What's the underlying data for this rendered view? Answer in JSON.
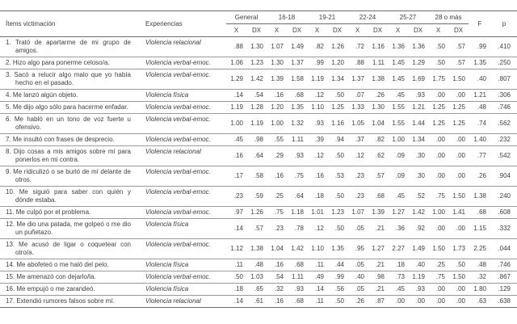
{
  "colors": {
    "background": "#ffffff",
    "text": "#404040",
    "rule_dark": "#6b6b6b",
    "rule_light": "#9b9b9b"
  },
  "table": {
    "headers": {
      "items": "Ítems victimación",
      "experiences": "Experiencias",
      "groups": [
        "General",
        "16-18",
        "19-21",
        "22-24",
        "25-27",
        "28 o más"
      ],
      "mean": "X",
      "sd": "DX",
      "f": "F",
      "p": "p"
    },
    "rows": [
      {
        "item": "1. Trató de apartarme de mi grupo de amigos.",
        "experience": "Violencia relacional",
        "values": [
          ".88",
          "1.30",
          "1.07",
          "1.49",
          ".82",
          "1.26",
          ".72",
          "1.16",
          "1.36",
          "1.36",
          ".50",
          ".57"
        ],
        "f": ".99",
        "p": ".410"
      },
      {
        "item": "2. Hizo algo para ponerme celoso/a.",
        "experience": "Violencia verbal-emoc.",
        "values": [
          "1.06",
          "1.23",
          "1.30",
          "1.37",
          ".99",
          "1.20",
          ".88",
          "1.11",
          "1.45",
          "1.29",
          ".50",
          ".57"
        ],
        "f": "1.35",
        "p": ".250"
      },
      {
        "item": "3. Sacó a relucir algo malo que yo había hecho en el pasado.",
        "experience": "Violencia verbal-emoc.",
        "values": [
          "1.29",
          "1.42",
          "1.39",
          "1.58",
          "1.19",
          "1.34",
          "1.37",
          "1.38",
          "1.45",
          "1.69",
          "1.75",
          "1.50"
        ],
        "f": ".40",
        "p": ".807"
      },
      {
        "item": "4. Me lanzó algún objeto.",
        "experience": "Violencia física",
        "values": [
          ".14",
          ".54",
          ".16",
          ".68",
          ".12",
          ".50",
          ".07",
          ".26",
          ".45",
          ".93",
          ".00",
          ".00"
        ],
        "f": "1.21",
        "p": ".306"
      },
      {
        "item": "5. Me dijo algo sólo para hacerme enfadar.",
        "experience": "Violencia verbal-emoc.",
        "values": [
          "1.19",
          "1.28",
          "1.20",
          "1.35",
          "1.10",
          "1.25",
          "1.33",
          "1.30",
          "1.55",
          "1.21",
          "1.25",
          "1.25"
        ],
        "f": ".48",
        "p": ".746"
      },
      {
        "item": "6. Me habló en un tono de voz fuerte u ofensivo.",
        "experience": "Violencia verbal-emoc.",
        "values": [
          "1.00",
          "1.19",
          "1.00",
          "1.32",
          ".93",
          "1.16",
          "1.05",
          "1.04",
          "1.55",
          "1.44",
          "1.25",
          "1.25"
        ],
        "f": ".74",
        "p": ".562"
      },
      {
        "item": "7. Me insultó con frases de desprecio.",
        "experience": "Violencia verbal-emoc.",
        "values": [
          ".45",
          ".98",
          ".55",
          "1.11",
          ".39",
          ".94",
          ".37",
          ".82",
          "1.00",
          "1.34",
          ".00",
          ".00"
        ],
        "f": "1.40",
        "p": ".232"
      },
      {
        "item": "8. Dijo cosas a mis amigos sobre mí para ponerlos en mi contra.",
        "experience": "Violencia relacional",
        "values": [
          ".16",
          ".64",
          ".29",
          ".93",
          ".12",
          ".50",
          ".12",
          ".62",
          ".09",
          ".30",
          ".00",
          ".00"
        ],
        "f": ".77",
        "p": ".542"
      },
      {
        "item": "9. Me ridiculizó o se burló de mí delante de otros.",
        "experience": "Violencia verbal-emoc.",
        "values": [
          ".17",
          ".58",
          ".16",
          ".75",
          ".16",
          ".53",
          ".23",
          ".57",
          ".09",
          ".30",
          ".00",
          ".00"
        ],
        "f": ".26",
        "p": ".904"
      },
      {
        "item": "10. Me siguió para saber con quién y dónde estaba.",
        "experience": "Violencia verbal-emoc.",
        "values": [
          ".23",
          ".59",
          ".25",
          ".64",
          ".18",
          ".50",
          ".23",
          ".68",
          ".45",
          ".52",
          ".75",
          "1.50"
        ],
        "f": "1.38",
        "p": ".240"
      },
      {
        "item": "11. Me culpó por el problema.",
        "experience": "Violencia verbal-emoc.",
        "values": [
          ".97",
          "1.26",
          ".75",
          "1.18",
          "1.01",
          "1.23",
          "1.07",
          "1.39",
          "1.27",
          "1.42",
          "1.00",
          "1.41"
        ],
        "f": ".68",
        "p": ".608"
      },
      {
        "item": "12. Me dio una patada, me golpeó o me dio un puñetazo.",
        "experience": "Violencia física",
        "values": [
          ".14",
          ".57",
          ".23",
          ".78",
          ".12",
          ".50",
          ".05",
          ".21",
          ".36",
          ".92",
          ".00",
          ".00"
        ],
        "f": "1.15",
        "p": ".332"
      },
      {
        "item": "13. Me acusó de ligar o coquetear con otro/a.",
        "experience": "Violencia verbal-emoc.",
        "values": [
          "1.12",
          "1.38",
          "1.04",
          "1.42",
          "1.10",
          "1.35",
          ".95",
          "1.27",
          "2.27",
          "1.49",
          "1.50",
          "1.73"
        ],
        "f": "2.25",
        "p": ".044"
      },
      {
        "item": "14. Me abofeteó o me haló del pelo.",
        "experience": "Violencia física",
        "values": [
          ".11",
          ".48",
          ".16",
          ".68",
          ".11",
          ".44",
          ".05",
          ".21",
          ".18",
          ".40",
          ".25",
          ".50"
        ],
        "f": ".48",
        "p": ".746"
      },
      {
        "item": "15. Me amenazó con dejarlo/la.",
        "experience": "Violencia verbal-emoc.",
        "values": [
          ".50",
          "1.03",
          ".54",
          "1.11",
          ".49",
          ".99",
          ".40",
          ".98",
          ".73",
          "1.19",
          ".75",
          "1.50"
        ],
        "f": ".32",
        "p": ".867"
      },
      {
        "item": "16. Me empujó o me zarandeó.",
        "experience": "Violencia física",
        "values": [
          ".18",
          ".65",
          ".32",
          ".93",
          ".14",
          ".56",
          ".05",
          ".21",
          ".45",
          ".93",
          ".00",
          ".00"
        ],
        "f": "1.80",
        "p": ".129"
      },
      {
        "item": "17. Extendió rumores falsos sobre mí.",
        "experience": "Violencia relacional",
        "values": [
          ".14",
          ".61",
          ".16",
          ".68",
          ".11",
          ".50",
          ".26",
          ".87",
          ".00",
          ".00",
          ".00",
          ".00"
        ],
        "f": ".63",
        "p": ".638"
      }
    ]
  }
}
